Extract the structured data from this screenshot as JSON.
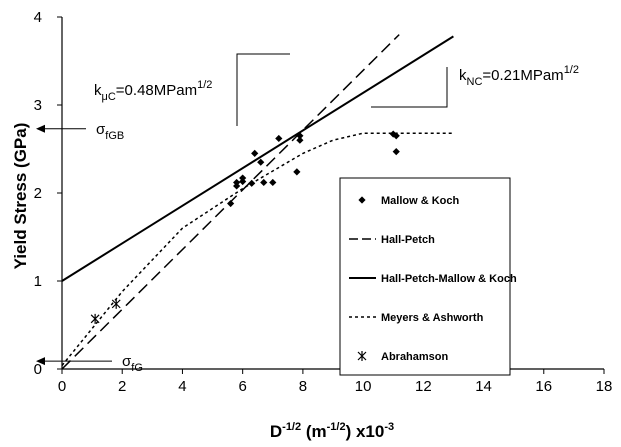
{
  "chart_data": {
    "type": "scatter",
    "xlabel": "D",
    "xlabel_sup": "-1/2",
    "xlabel_mid": " (m",
    "xlabel_mid_sup": "-1/2",
    "xlabel_tail": ") x10",
    "xlabel_tail_sup": "-3",
    "ylabel": "Yield Stress (GPa)",
    "xlim": [
      0,
      18
    ],
    "ylim": [
      0,
      4
    ],
    "x_ticks": [
      "0",
      "2",
      "4",
      "6",
      "8",
      "10",
      "12",
      "14",
      "16",
      "18"
    ],
    "y_ticks": [
      "0",
      "1",
      "2",
      "3",
      "4"
    ],
    "grid": false,
    "legend_position": "right",
    "series": [
      {
        "name": "Mallow & Koch",
        "kind": "markers",
        "marker": "diamond",
        "points": [
          [
            5.6,
            1.88
          ],
          [
            5.8,
            2.08
          ],
          [
            5.8,
            2.12
          ],
          [
            6.0,
            2.13
          ],
          [
            6.0,
            2.17
          ],
          [
            6.3,
            2.11
          ],
          [
            6.4,
            2.45
          ],
          [
            6.6,
            2.35
          ],
          [
            6.7,
            2.12
          ],
          [
            7.0,
            2.12
          ],
          [
            7.2,
            2.62
          ],
          [
            7.8,
            2.24
          ],
          [
            7.9,
            2.6
          ],
          [
            7.9,
            2.65
          ],
          [
            11.0,
            2.67
          ],
          [
            11.1,
            2.65
          ],
          [
            11.1,
            2.47
          ]
        ]
      },
      {
        "name": "Hall-Petch",
        "kind": "line",
        "style": "long-dash",
        "points": [
          [
            0,
            0
          ],
          [
            11.2,
            3.8
          ]
        ]
      },
      {
        "name": "Hall-Petch-Mallow & Koch",
        "kind": "line",
        "style": "solid",
        "points": [
          [
            0,
            1.0
          ],
          [
            13.0,
            3.78
          ]
        ]
      },
      {
        "name": "Meyers & Ashworth",
        "kind": "line",
        "style": "dotted",
        "points": [
          [
            0,
            0.04
          ],
          [
            2,
            0.88
          ],
          [
            4,
            1.6
          ],
          [
            6,
            2.05
          ],
          [
            8,
            2.45
          ],
          [
            9,
            2.6
          ],
          [
            10,
            2.68
          ],
          [
            11,
            2.68
          ],
          [
            13,
            2.68
          ]
        ]
      },
      {
        "name": "Abrahamson",
        "kind": "markers",
        "marker": "star",
        "points": [
          [
            1.1,
            0.57
          ],
          [
            1.8,
            0.74
          ]
        ]
      }
    ],
    "annotations": {
      "k_uc": {
        "base": "k",
        "sub": "μC",
        "mid": "=0.48MPam",
        "sup": "1/2"
      },
      "k_nc": {
        "base": "k",
        "sub": "NC",
        "mid": "=0.21MPam",
        "sup": "1/2"
      },
      "sigma_fgb": {
        "base": "σ",
        "sub": "fGB",
        "y": 2.73
      },
      "sigma_fg": {
        "base": "σ",
        "sub": "fG",
        "y": 0.09
      }
    }
  }
}
